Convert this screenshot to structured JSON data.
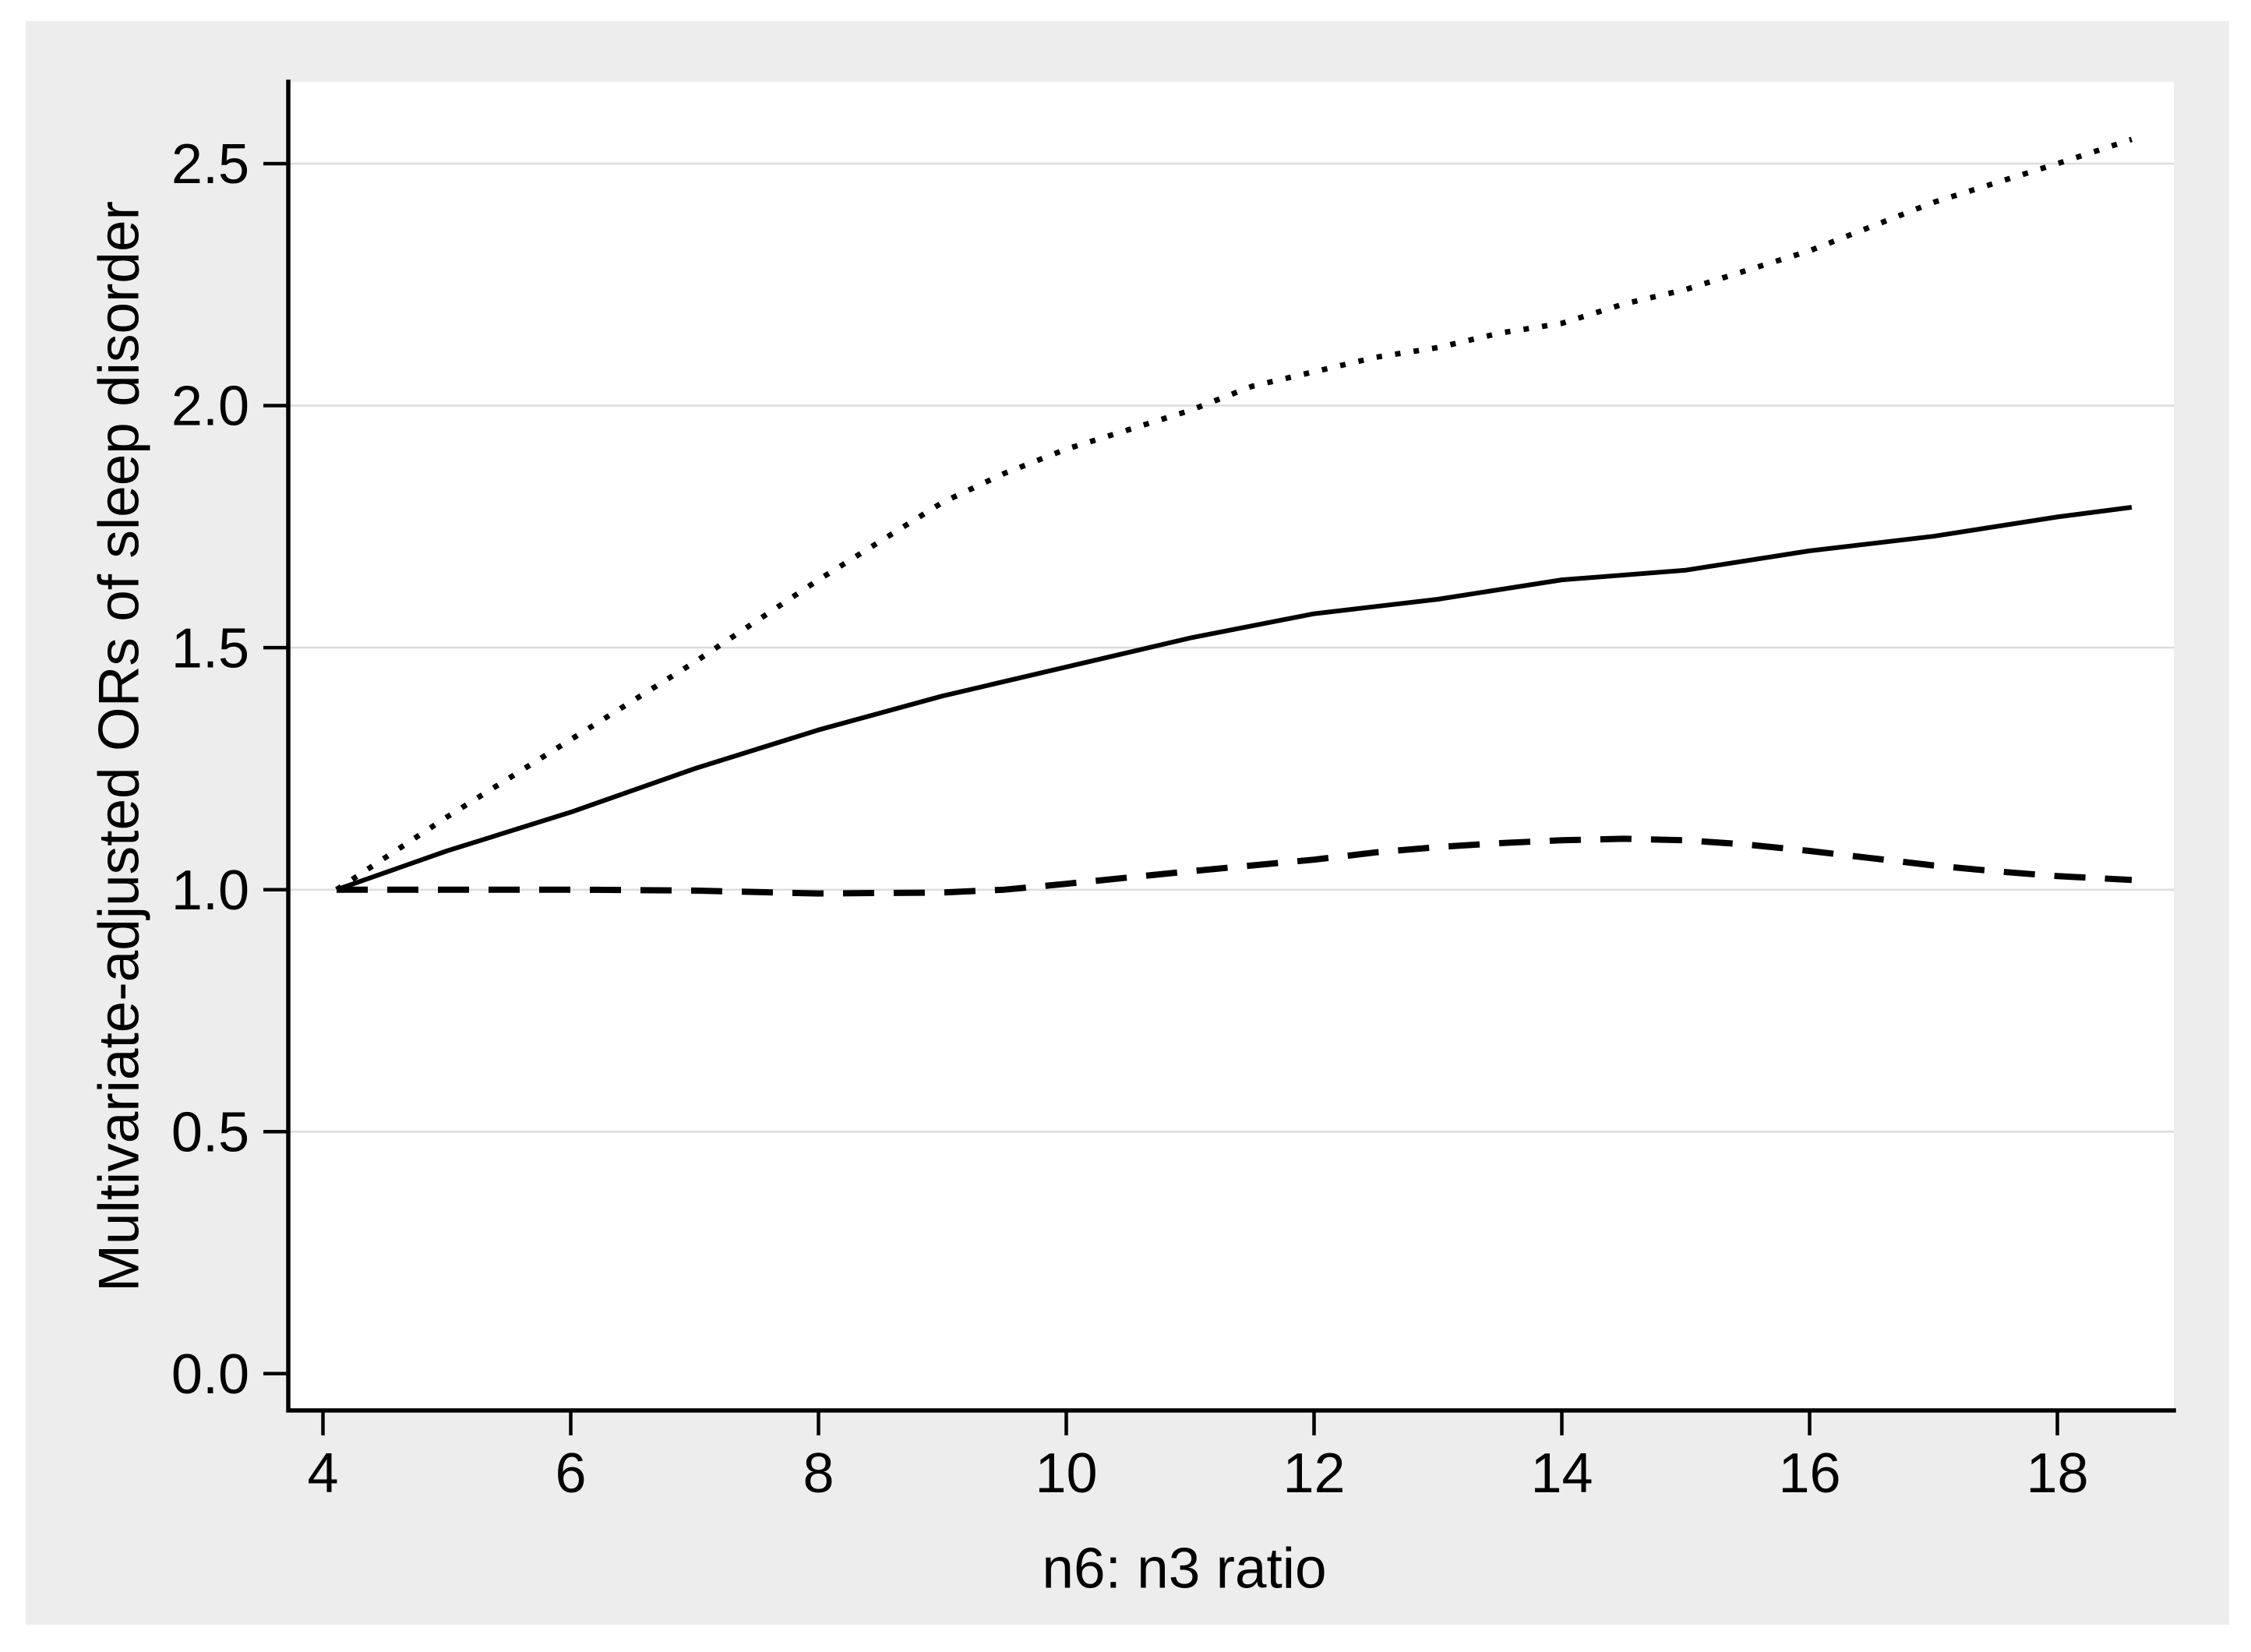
{
  "figure": {
    "page_background": "#ffffff",
    "graph_background": "#ededed",
    "plot_background": "#ffffff",
    "gridline_color": "#dcdcdc",
    "axis_color": "#000000",
    "line_color": "#000000",
    "text_color": "#000000"
  },
  "chart_data": {
    "type": "line",
    "title": "",
    "xlabel": "n6: n3 ratio",
    "ylabel": "Multivariate-adjusted ORs of sleep disorder",
    "xlim": [
      3.72,
      18.94
    ],
    "ylim": [
      -0.076,
      2.669
    ],
    "grid": "horizontal",
    "grid_values": [
      0.5,
      1.0,
      1.5,
      2.0,
      2.5
    ],
    "legend": "none",
    "x_ticks": {
      "values": [
        4,
        6,
        8,
        10,
        12,
        14,
        16,
        18
      ],
      "labels": [
        "4",
        "6",
        "8",
        "10",
        "12",
        "14",
        "16",
        "18"
      ]
    },
    "y_ticks": {
      "values": [
        0,
        0.5,
        1.0,
        1.5,
        2.0,
        2.5
      ],
      "labels": [
        "0.0",
        "0.5",
        "1.0",
        "1.5",
        "2.0",
        "2.5"
      ]
    },
    "series": [
      {
        "name": "dotted-line-upper",
        "style": "dotted",
        "x": [
          4.11,
          5,
          6,
          7,
          8,
          9,
          9.5,
          10,
          10.5,
          11,
          11.5,
          12,
          12.5,
          13,
          13.5,
          14,
          14.5,
          15,
          15.5,
          16,
          16.5,
          17,
          17.5,
          18,
          18.6
        ],
        "y": [
          1.0,
          1.15,
          1.31,
          1.47,
          1.64,
          1.8,
          1.86,
          1.91,
          1.95,
          1.99,
          2.04,
          2.07,
          2.1,
          2.12,
          2.15,
          2.17,
          2.21,
          2.24,
          2.28,
          2.32,
          2.37,
          2.42,
          2.46,
          2.5,
          2.55
        ]
      },
      {
        "name": "solid-line-middle",
        "style": "solid",
        "x": [
          4.11,
          5,
          6,
          7,
          8,
          9,
          10,
          11,
          12,
          13,
          14,
          15,
          16,
          17,
          18,
          18.6
        ],
        "y": [
          1.0,
          1.08,
          1.16,
          1.25,
          1.33,
          1.4,
          1.46,
          1.52,
          1.57,
          1.6,
          1.64,
          1.66,
          1.7,
          1.73,
          1.77,
          1.79
        ]
      },
      {
        "name": "dashed-line-lower",
        "style": "dashed",
        "x": [
          4.11,
          5,
          6,
          7,
          8,
          9,
          9.5,
          10,
          10.5,
          11,
          11.5,
          12,
          12.5,
          13,
          13.5,
          14,
          14.5,
          15,
          15.5,
          16,
          16.5,
          17,
          17.5,
          18,
          18.6
        ],
        "y": [
          1.0,
          1.0,
          1.0,
          0.998,
          0.992,
          0.994,
          1.0,
          1.012,
          1.025,
          1.038,
          1.05,
          1.062,
          1.077,
          1.088,
          1.096,
          1.102,
          1.105,
          1.102,
          1.093,
          1.08,
          1.065,
          1.05,
          1.038,
          1.028,
          1.02
        ]
      }
    ]
  }
}
